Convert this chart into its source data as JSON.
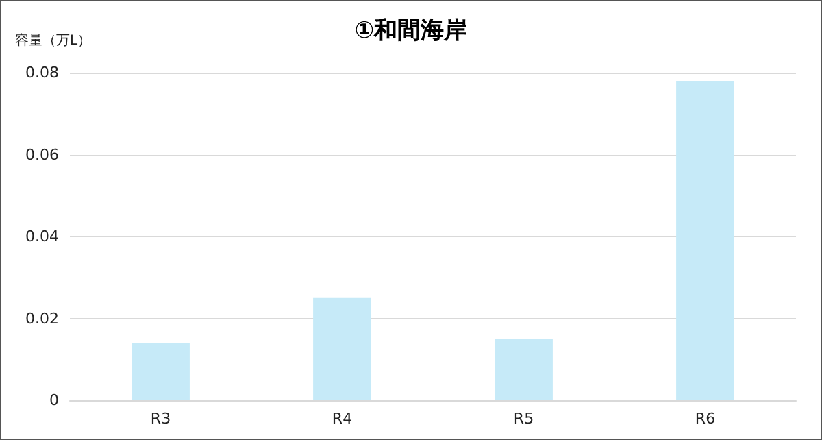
{
  "chart_data": {
    "type": "bar",
    "title": "①和間海岸",
    "ylabel": "容量（万L）",
    "categories": [
      "R3",
      "R4",
      "R5",
      "R6"
    ],
    "values": [
      0.014,
      0.025,
      0.015,
      0.078
    ],
    "color": "#c6eaf8",
    "ylim": [
      0,
      0.08
    ],
    "yticks": [
      0,
      0.02,
      0.04,
      0.06,
      0.08
    ],
    "grid": "y"
  }
}
